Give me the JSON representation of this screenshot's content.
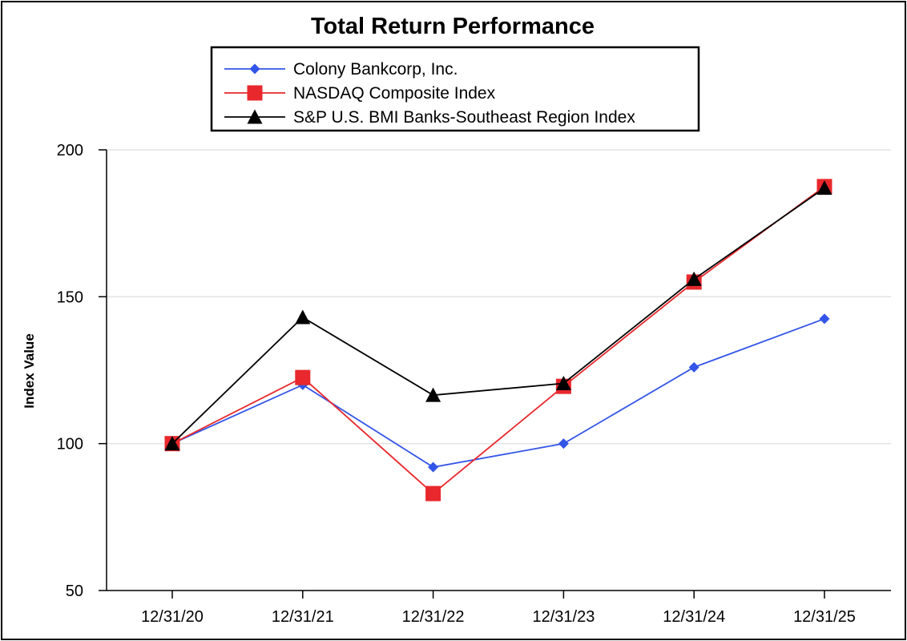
{
  "chart_data": {
    "type": "line",
    "title": "Total Return Performance",
    "ylabel": "Index Value",
    "xlabel": "",
    "categories": [
      "12/31/20",
      "12/31/21",
      "12/31/22",
      "12/31/23",
      "12/31/24",
      "12/31/25"
    ],
    "ylim": [
      50,
      200
    ],
    "yticks": [
      "50",
      "100",
      "150",
      "200"
    ],
    "grid": true,
    "legend_position": "top-center",
    "series": [
      {
        "name": "Colony Bankcorp, Inc.",
        "marker": "diamond",
        "color": "#3355e8",
        "values": [
          100,
          120,
          92,
          100,
          126,
          142.5
        ]
      },
      {
        "name": "NASDAQ Composite Index",
        "marker": "square",
        "color": "#e8282c",
        "values": [
          100,
          122.5,
          83,
          119.5,
          155,
          187.5
        ]
      },
      {
        "name": "S&P U.S. BMI Banks-Southeast Region Index",
        "marker": "triangle",
        "color": "#000000",
        "values": [
          100,
          143,
          116.5,
          120.5,
          156,
          187
        ]
      }
    ]
  }
}
